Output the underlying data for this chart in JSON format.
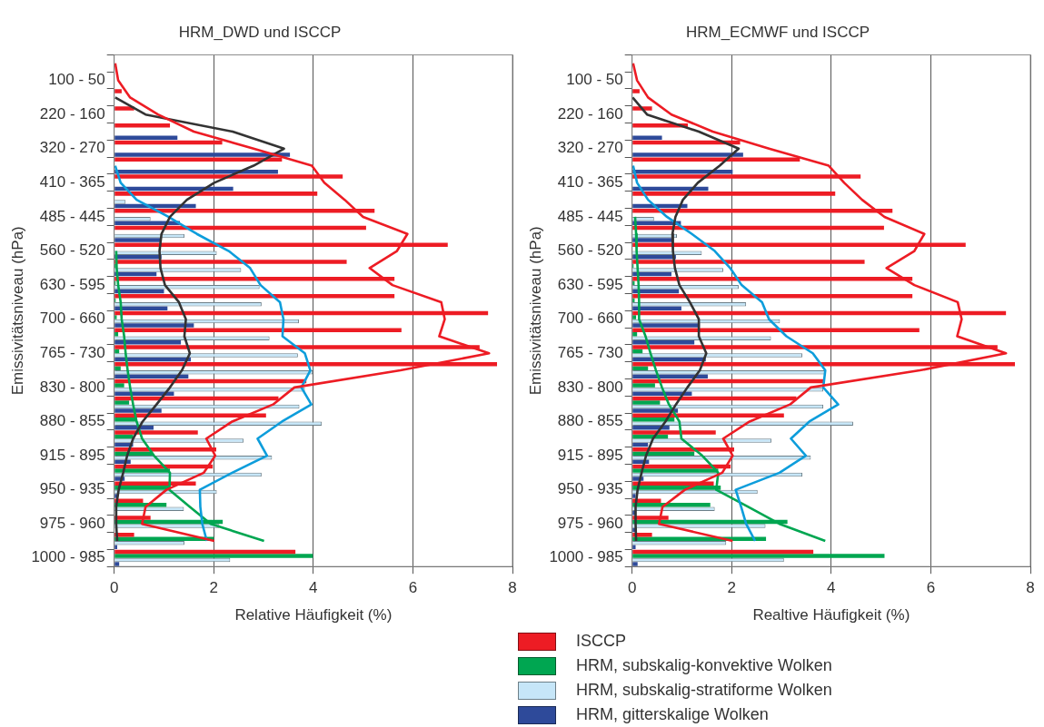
{
  "chart_data": [
    {
      "type": "bar",
      "orientation": "horizontal",
      "title": "HRM_DWD und ISCCP",
      "xlabel": "Relative Häufigkeit (%)",
      "ylabel": "Emissivitätsniveau (hPa)",
      "categories": [
        null,
        "100 - 50",
        null,
        "220 - 160",
        null,
        "320 - 270",
        null,
        "410 - 365",
        null,
        "485 - 445",
        null,
        "560 - 520",
        null,
        "630 - 595",
        null,
        "700 - 660",
        null,
        "765 - 730",
        null,
        "830 - 800",
        null,
        "880 - 855",
        null,
        "915 - 895",
        null,
        "950 - 935",
        null,
        "975 - 960",
        null,
        "1000 - 985"
      ],
      "xlim": [
        0,
        8
      ],
      "xticks": [
        0,
        2,
        4,
        6,
        8
      ],
      "grid": "x",
      "series": [
        {
          "color": "#ed1c24",
          "values": [
            0,
            0,
            0.15,
            0.4,
            1.12,
            2.17,
            3.37,
            4.59,
            4.08,
            5.23,
            5.06,
            6.7,
            4.67,
            5.63,
            5.63,
            7.51,
            5.77,
            7.34,
            7.69,
            3.86,
            3.3,
            3.05,
            1.68,
            2.05,
            1.98,
            1.64,
            0.58,
            0.73,
            0.4,
            3.64
          ]
        },
        {
          "color": "#00a651",
          "values": [
            0,
            0,
            0,
            0,
            0,
            0,
            0,
            0,
            0,
            0,
            0,
            0,
            0.03,
            0.03,
            0.03,
            0.05,
            0.08,
            0.1,
            0.13,
            0.2,
            0.3,
            0.45,
            0.38,
            0.77,
            1.12,
            1.12,
            1.05,
            2.18,
            2.0,
            3.99
          ]
        },
        {
          "color": "#c6e6f8",
          "values": [
            0,
            0,
            0,
            0,
            0,
            0,
            0,
            null,
            0.23,
            0.73,
            1.41,
            2.06,
            2.55,
            2.92,
            2.96,
            3.71,
            3.12,
            3.69,
            3.99,
            3.83,
            3.72,
            4.17,
            2.6,
            3.17,
            2.96,
            2.06,
            1.4,
            2.11,
            1.41,
            2.33
          ]
        },
        {
          "color": "#2e4a9a",
          "values": [
            0,
            0,
            0,
            0,
            1.27,
            3.53,
            3.29,
            2.39,
            1.64,
            1.32,
            0.95,
            0.95,
            0.85,
            1.0,
            1.07,
            1.6,
            1.34,
            1.54,
            1.49,
            1.2,
            0.95,
            0.79,
            0.38,
            0.33,
            0.21,
            0.06,
            null,
            null,
            0.06,
            0.1
          ]
        },
        {
          "type": "line",
          "color": "#ed1c24",
          "values": [
            0.02,
            0.08,
            0.32,
            0.88,
            1.6,
            2.8,
            3.97,
            4.22,
            4.63,
            5.0,
            5.89,
            5.68,
            5.13,
            5.59,
            6.57,
            6.64,
            6.53,
            7.53,
            5.75,
            3.62,
            3.19,
            2.37,
            1.85,
            2.03,
            1.8,
            1.05,
            0.63,
            0.56,
            2.01,
            null
          ]
        },
        {
          "type": "line",
          "color": "#333333",
          "values": [
            null,
            null,
            0.02,
            0.63,
            2.38,
            3.41,
            2.8,
            2.01,
            1.46,
            1.12,
            0.95,
            0.91,
            0.93,
            1.02,
            1.3,
            1.44,
            1.41,
            1.52,
            1.36,
            1.12,
            0.85,
            0.57,
            0.38,
            0.26,
            0.18,
            0.09,
            0.04,
            0.04,
            0.06,
            null
          ]
        },
        {
          "type": "line",
          "color": "#0d9ddb",
          "values": [
            null,
            null,
            null,
            null,
            null,
            null,
            0.02,
            0.13,
            0.45,
            1.09,
            1.66,
            2.3,
            2.73,
            2.94,
            3.33,
            3.4,
            3.38,
            3.83,
            3.94,
            3.76,
            3.96,
            3.37,
            2.88,
            3.07,
            2.37,
            1.72,
            1.73,
            1.77,
            1.86,
            null
          ]
        },
        {
          "type": "line",
          "color": "#00a651",
          "values": [
            null,
            null,
            null,
            null,
            null,
            null,
            null,
            null,
            null,
            null,
            null,
            0.04,
            0.05,
            0.08,
            0.13,
            0.15,
            0.2,
            0.23,
            0.27,
            0.32,
            0.38,
            0.45,
            0.56,
            0.8,
            1.12,
            1.11,
            1.52,
            1.94,
            3.01,
            null
          ]
        }
      ]
    },
    {
      "type": "bar",
      "orientation": "horizontal",
      "title": "HRM_ECMWF und ISCCP",
      "xlabel": "Realtive Häufigkeit (%)",
      "ylabel": "Emissivitätsniveau (hPa)",
      "categories": [
        null,
        "100 - 50",
        null,
        "220 - 160",
        null,
        "320 - 270",
        null,
        "410 - 365",
        null,
        "485 - 445",
        null,
        "560 - 520",
        null,
        "630 - 595",
        null,
        "700 - 660",
        null,
        "765 - 730",
        null,
        "830 - 800",
        null,
        "880 - 855",
        null,
        "915 - 895",
        null,
        "950 - 935",
        null,
        "975 - 960",
        null,
        "1000 - 985"
      ],
      "xlim": [
        0,
        8
      ],
      "xticks": [
        0,
        2,
        4,
        6,
        8
      ],
      "grid": "x",
      "legend": "bottom",
      "series": [
        {
          "name": "ISCCP",
          "color": "#ed1c24",
          "values": [
            0,
            0,
            0.15,
            0.4,
            1.12,
            2.17,
            3.37,
            4.59,
            4.08,
            5.23,
            5.06,
            6.7,
            4.67,
            5.63,
            5.63,
            7.51,
            5.77,
            7.34,
            7.69,
            3.86,
            3.3,
            3.05,
            1.68,
            2.05,
            1.98,
            1.64,
            0.58,
            0.73,
            0.4,
            3.64
          ]
        },
        {
          "name": "HRM, subskalig-konvektive Wolken",
          "color": "#00a651",
          "values": [
            0,
            0,
            0,
            0,
            0,
            0,
            0,
            0,
            0,
            0,
            0,
            0,
            0.03,
            0.05,
            0.05,
            0.08,
            0.1,
            0.21,
            0.32,
            0.46,
            0.56,
            0.85,
            0.72,
            1.25,
            1.73,
            1.78,
            1.57,
            3.12,
            2.69,
            5.07
          ]
        },
        {
          "name": "HRM, subskalig-stratiforme Wolken",
          "color": "#c6e6f8",
          "values": [
            0,
            0,
            0,
            0,
            0,
            0,
            0,
            0,
            null,
            0.44,
            0.9,
            1.4,
            1.83,
            2.14,
            2.29,
            2.97,
            2.79,
            3.42,
            3.89,
            3.84,
            3.84,
            4.44,
            2.8,
            3.59,
            3.42,
            2.52,
            1.66,
            2.68,
            1.89,
            3.05
          ]
        },
        {
          "name": "HRM, gitterskalige Wolken",
          "color": "#2e4a9a",
          "values": [
            0,
            0,
            0,
            0,
            0.6,
            2.23,
            2.02,
            1.53,
            1.11,
            0.98,
            0.79,
            0.88,
            0.79,
            0.94,
            0.99,
            1.36,
            1.25,
            1.48,
            1.52,
            1.2,
            0.92,
            0.75,
            0.32,
            0.34,
            0.23,
            0.07,
            0.06,
            0.06,
            0.07,
            0.11
          ]
        },
        {
          "type": "line",
          "color": "#ed1c24",
          "values": [
            0.02,
            0.1,
            0.32,
            0.79,
            1.62,
            2.75,
            3.95,
            4.26,
            4.62,
            5.07,
            5.87,
            5.67,
            5.11,
            5.67,
            6.54,
            6.62,
            6.53,
            7.51,
            5.78,
            3.59,
            3.17,
            2.36,
            1.83,
            2.02,
            1.81,
            1.06,
            0.61,
            0.54,
            2.02,
            null
          ]
        },
        {
          "type": "line",
          "color": "#333333",
          "values": [
            null,
            null,
            0.01,
            0.3,
            1.34,
            2.14,
            1.76,
            1.32,
            1.02,
            0.87,
            0.81,
            0.82,
            0.86,
            0.95,
            1.16,
            1.34,
            1.34,
            1.49,
            1.36,
            1.11,
            0.88,
            0.67,
            0.42,
            0.28,
            0.19,
            0.11,
            0.07,
            0.07,
            0.08,
            null
          ]
        },
        {
          "type": "line",
          "color": "#0d9ddb",
          "values": [
            null,
            null,
            null,
            null,
            null,
            null,
            0.02,
            0.1,
            0.32,
            0.7,
            1.2,
            1.66,
            1.97,
            2.2,
            2.61,
            2.75,
            3.1,
            3.63,
            3.88,
            3.84,
            4.14,
            3.56,
            3.19,
            3.49,
            2.96,
            2.08,
            2.19,
            2.29,
            2.47,
            null
          ]
        },
        {
          "type": "line",
          "color": "#00a651",
          "values": [
            null,
            null,
            null,
            null,
            null,
            null,
            null,
            null,
            null,
            0.06,
            0.08,
            0.09,
            0.11,
            0.13,
            0.14,
            0.14,
            0.27,
            0.37,
            0.48,
            0.6,
            0.74,
            0.95,
            0.99,
            1.41,
            1.73,
            1.69,
            2.33,
            2.96,
            3.88,
            null
          ]
        }
      ]
    }
  ]
}
